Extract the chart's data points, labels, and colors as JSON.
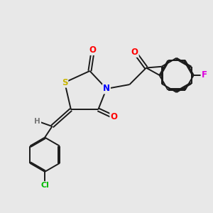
{
  "bg_color": "#e8e8e8",
  "bond_color": "#1a1a1a",
  "atom_colors": {
    "S": "#c8b400",
    "N": "#0000ff",
    "O": "#ff0000",
    "Cl": "#00bb00",
    "F": "#dd00dd",
    "H": "#777777",
    "C": "#1a1a1a"
  },
  "figsize": [
    3.0,
    3.0
  ],
  "dpi": 100
}
